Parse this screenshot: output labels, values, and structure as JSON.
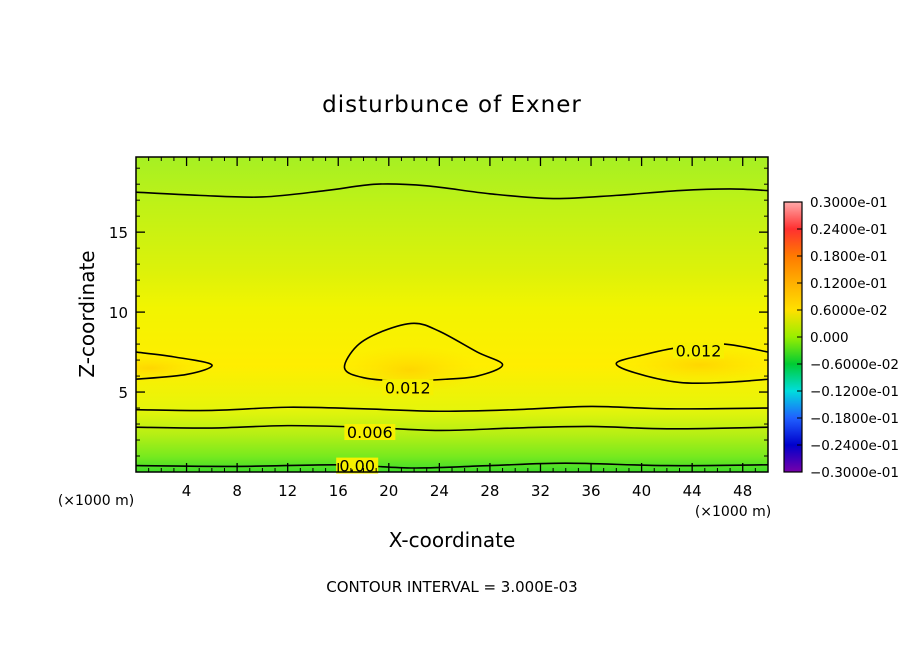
{
  "chart_data": {
    "type": "heatmap",
    "title": "disturbunce of Exner",
    "xlabel": "X-coordinate",
    "ylabel": "Z-coordinate",
    "x_unit": "(×1000 m)",
    "xlim": [
      0,
      50
    ],
    "ylim": [
      0,
      19.7
    ],
    "x_ticks": [
      "4",
      "8",
      "12",
      "16",
      "20",
      "24",
      "28",
      "32",
      "36",
      "40",
      "44",
      "48"
    ],
    "x_tick_values": [
      4,
      8,
      12,
      16,
      20,
      24,
      28,
      32,
      36,
      40,
      44,
      48
    ],
    "y_ticks": [
      "5",
      "10",
      "15"
    ],
    "y_tick_values": [
      5,
      10,
      15
    ],
    "footer": "CONTOUR INTERVAL = 3.000E-03",
    "colorbar": {
      "labels": [
        "0.3000e-01",
        "0.2400e-01",
        "0.1800e-01",
        "0.1200e-01",
        "0.6000e-02",
        "0.000",
        "−0.6000e-02",
        "−0.1200e-01",
        "−0.1800e-01",
        "−0.2400e-01",
        "−0.3000e-01"
      ],
      "colors": [
        "#ffaaaa",
        "#ff3030",
        "#ff7a00",
        "#ffb000",
        "#ffe000",
        "#99ee00",
        "#00cc33",
        "#00dddd",
        "#2060ff",
        "#0000cc",
        "#7700aa"
      ]
    },
    "contour_labels": [
      {
        "text": "0.012",
        "x": 21.5,
        "z": 5.3
      },
      {
        "text": "0.012",
        "x": 44.5,
        "z": 7.6
      },
      {
        "text": "0.006",
        "x": 18.5,
        "z": 2.5
      },
      {
        "text": "0.00",
        "x": 17.5,
        "z": 0.4
      }
    ],
    "contours": [
      {
        "level": 0.003,
        "closed": false,
        "points": [
          [
            0,
            17.5
          ],
          [
            5,
            17.3
          ],
          [
            10,
            17.2
          ],
          [
            15,
            17.6
          ],
          [
            19,
            18.0
          ],
          [
            23,
            17.9
          ],
          [
            28,
            17.4
          ],
          [
            33,
            17.1
          ],
          [
            38,
            17.3
          ],
          [
            43,
            17.6
          ],
          [
            47,
            17.7
          ],
          [
            50,
            17.6
          ]
        ]
      },
      {
        "level": 0.006,
        "closed": false,
        "points": [
          [
            0,
            2.8
          ],
          [
            6,
            2.75
          ],
          [
            12,
            2.9
          ],
          [
            18,
            2.8
          ],
          [
            24,
            2.6
          ],
          [
            30,
            2.75
          ],
          [
            36,
            2.85
          ],
          [
            42,
            2.7
          ],
          [
            50,
            2.8
          ]
        ]
      },
      {
        "level": 0.009,
        "closed": false,
        "points": [
          [
            0,
            3.9
          ],
          [
            6,
            3.85
          ],
          [
            12,
            4.05
          ],
          [
            18,
            3.95
          ],
          [
            24,
            3.8
          ],
          [
            30,
            3.9
          ],
          [
            36,
            4.1
          ],
          [
            42,
            3.95
          ],
          [
            50,
            4.0
          ]
        ]
      },
      {
        "level": 0.003,
        "closed": false,
        "points": [
          [
            0,
            0.4
          ],
          [
            8,
            0.35
          ],
          [
            16,
            0.45
          ],
          [
            22,
            0.25
          ],
          [
            28,
            0.4
          ],
          [
            34,
            0.55
          ],
          [
            42,
            0.4
          ],
          [
            50,
            0.45
          ]
        ]
      },
      {
        "level": 0.012,
        "closed": false,
        "points": [
          [
            0,
            7.5
          ],
          [
            3,
            7.2
          ],
          [
            6,
            6.7
          ],
          [
            4,
            6.1
          ],
          [
            0,
            5.8
          ]
        ]
      },
      {
        "level": 0.012,
        "closed": true,
        "points": [
          [
            16.5,
            6.5
          ],
          [
            17.5,
            7.9
          ],
          [
            19.5,
            8.8
          ],
          [
            22,
            9.3
          ],
          [
            24,
            8.8
          ],
          [
            27,
            7.5
          ],
          [
            29,
            6.7
          ],
          [
            27,
            6.0
          ],
          [
            24.5,
            5.8
          ],
          [
            21,
            5.7
          ],
          [
            18,
            5.9
          ]
        ]
      },
      {
        "level": 0.012,
        "closed": false,
        "points": [
          [
            50,
            7.5
          ],
          [
            46.5,
            8.0
          ],
          [
            43,
            7.8
          ],
          [
            40,
            7.3
          ],
          [
            38,
            6.8
          ],
          [
            39.5,
            6.2
          ],
          [
            43,
            5.6
          ],
          [
            46.5,
            5.6
          ],
          [
            50,
            5.8
          ]
        ]
      }
    ]
  }
}
